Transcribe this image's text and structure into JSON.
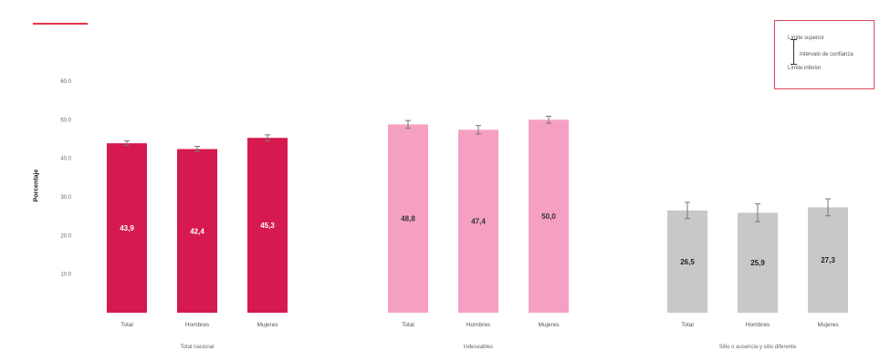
{
  "chart_data": {
    "type": "bar",
    "ylabel": "Porcentaje",
    "ylim": [
      0,
      60
    ],
    "yticks": [
      "60.0",
      "50.0",
      "40.0",
      "30.0",
      "20.0",
      "10.0",
      ""
    ],
    "panels": [
      {
        "group_label": "Total nacional",
        "color": "#d6194e",
        "value_label_color": "#ffffff",
        "categories": [
          "Total",
          "Hombres",
          "Mujeres"
        ],
        "values": [
          43.9,
          42.4,
          45.3
        ],
        "value_labels": [
          "43,9",
          "42,4",
          "45,3"
        ],
        "ci_low": [
          43.3,
          41.7,
          44.5
        ],
        "ci_high": [
          44.5,
          43.1,
          46.1
        ]
      },
      {
        "group_label": "Indeseables",
        "color": "#f5a0c2",
        "value_label_color": "#333333",
        "categories": [
          "Total",
          "Hombres",
          "Mujeres"
        ],
        "values": [
          48.8,
          47.4,
          50.0
        ],
        "value_labels": [
          "48,8",
          "47,4",
          "50,0"
        ],
        "ci_low": [
          47.8,
          46.3,
          49.1
        ],
        "ci_high": [
          49.8,
          48.5,
          50.9
        ]
      },
      {
        "group_label": "Sitio o ausencia y sitio diferente",
        "color": "#c8c8c8",
        "value_label_color": "#222222",
        "categories": [
          "Total",
          "Hombres",
          "Mujeres"
        ],
        "values": [
          26.5,
          25.9,
          27.3
        ],
        "value_labels": [
          "26,5",
          "25,9",
          "27,3"
        ],
        "ci_low": [
          24.4,
          23.6,
          25.1
        ],
        "ci_high": [
          28.6,
          28.2,
          29.5
        ]
      }
    ],
    "legend": {
      "upper": "Límite superior",
      "ci": "Intervalo de confianza",
      "lower": "Límite inferior"
    },
    "grid": false
  }
}
